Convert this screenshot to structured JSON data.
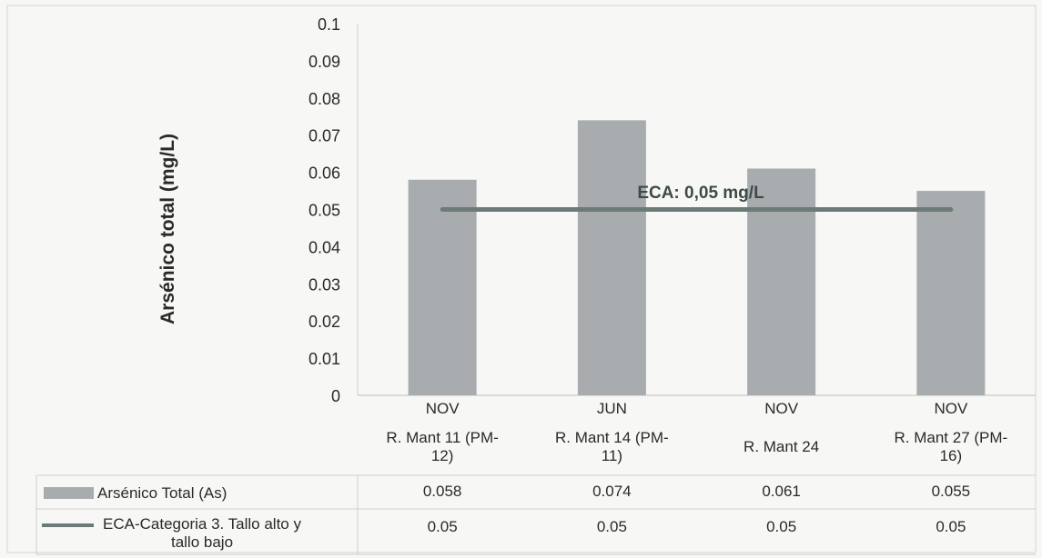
{
  "colors": {
    "bar": "#a9acae",
    "line": "#6c7a78",
    "text": "#2a2a2a",
    "background": "#f7f7f5",
    "border": "#cfcfcf"
  },
  "chart_data": {
    "type": "bar",
    "ylabel": "Arsénico total (mg/L)",
    "ylim": [
      0,
      0.1
    ],
    "yticks": [
      "0",
      "0.01",
      "0.02",
      "0.03",
      "0.04",
      "0.05",
      "0.06",
      "0.07",
      "0.08",
      "0.09",
      "0.1"
    ],
    "grid": false,
    "categories": [
      {
        "month": "NOV",
        "station": [
          "R. Mant 11 (PM-",
          "12)"
        ]
      },
      {
        "month": "JUN",
        "station": [
          "R. Mant 14 (PM-",
          "11)"
        ]
      },
      {
        "month": "NOV",
        "station": [
          "R. Mant 24"
        ]
      },
      {
        "month": "NOV",
        "station": [
          "R. Mant 27 (PM-",
          "16)"
        ]
      }
    ],
    "series": [
      {
        "name": "Arsénico Total (As)",
        "type": "bar",
        "values": [
          0.058,
          0.074,
          0.061,
          0.055
        ],
        "value_labels": [
          "0.058",
          "0.074",
          "0.061",
          "0.055"
        ]
      },
      {
        "name_lines": [
          "ECA-Categoria 3. Tallo alto y",
          "tallo bajo"
        ],
        "type": "line",
        "values": [
          0.05,
          0.05,
          0.05,
          0.05
        ],
        "value_labels": [
          "0.05",
          "0.05",
          "0.05",
          "0.05"
        ]
      }
    ],
    "annotation": "ECA: 0,05 mg/L",
    "legend": "data-table-below"
  }
}
